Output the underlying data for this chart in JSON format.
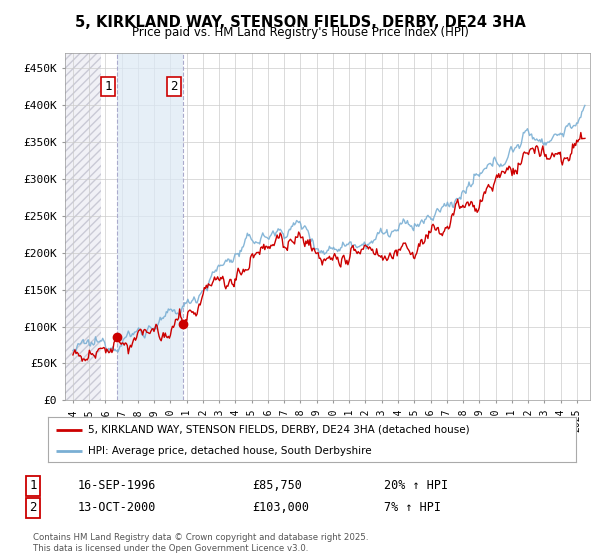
{
  "title": "5, KIRKLAND WAY, STENSON FIELDS, DERBY, DE24 3HA",
  "subtitle": "Price paid vs. HM Land Registry's House Price Index (HPI)",
  "legend_line1": "5, KIRKLAND WAY, STENSON FIELDS, DERBY, DE24 3HA (detached house)",
  "legend_line2": "HPI: Average price, detached house, South Derbyshire",
  "sale1_date": "16-SEP-1996",
  "sale1_price": "£85,750",
  "sale1_hpi": "20% ↑ HPI",
  "sale2_date": "13-OCT-2000",
  "sale2_price": "£103,000",
  "sale2_hpi": "7% ↑ HPI",
  "footer": "Contains HM Land Registry data © Crown copyright and database right 2025.\nThis data is licensed under the Open Government Licence v3.0.",
  "price_line_color": "#cc0000",
  "hpi_line_color": "#7aafd4",
  "sale_marker_color": "#cc0000",
  "sale_vline_color": "#aaaacc",
  "ylim": [
    0,
    470000
  ],
  "yticks": [
    0,
    50000,
    100000,
    150000,
    200000,
    250000,
    300000,
    350000,
    400000,
    450000
  ],
  "ytick_labels": [
    "£0",
    "£50K",
    "£100K",
    "£150K",
    "£200K",
    "£250K",
    "£300K",
    "£350K",
    "£400K",
    "£450K"
  ],
  "grid_color": "#cccccc",
  "shade_color": "#dce9f5",
  "hatch_color": "#c8c8d4",
  "sale1_t": 1996.71,
  "sale2_t": 2000.79,
  "sale1_price_val": 85750,
  "sale2_price_val": 103000,
  "xstart": 1994.0,
  "xend": 2025.5
}
